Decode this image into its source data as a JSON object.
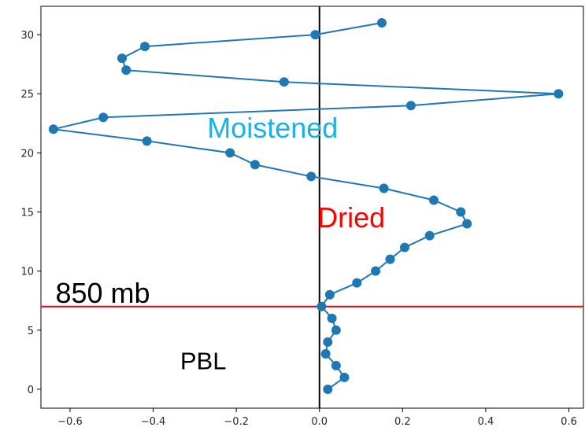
{
  "chart_data": {
    "type": "line",
    "title": "",
    "xlabel": "",
    "ylabel": "",
    "xlim": [
      -0.67,
      0.635
    ],
    "ylim": [
      -1.6,
      32.4
    ],
    "x_ticks": [
      -0.6,
      -0.4,
      -0.2,
      0.0,
      0.2,
      0.4,
      0.6
    ],
    "x_tick_labels": [
      "−0.6",
      "−0.4",
      "−0.2",
      "0.0",
      "0.2",
      "0.4",
      "0.6"
    ],
    "y_ticks": [
      0,
      5,
      10,
      15,
      20,
      25,
      30
    ],
    "y_tick_labels": [
      "0",
      "5",
      "10",
      "15",
      "20",
      "25",
      "30"
    ],
    "grid": false,
    "series": [
      {
        "color": "#1f77b4",
        "marker": "circle",
        "points": [
          {
            "x": 0.02,
            "y": 0
          },
          {
            "x": 0.06,
            "y": 1
          },
          {
            "x": 0.04,
            "y": 2
          },
          {
            "x": 0.015,
            "y": 3
          },
          {
            "x": 0.02,
            "y": 4
          },
          {
            "x": 0.04,
            "y": 5
          },
          {
            "x": 0.03,
            "y": 6
          },
          {
            "x": 0.005,
            "y": 7
          },
          {
            "x": 0.025,
            "y": 8
          },
          {
            "x": 0.09,
            "y": 9
          },
          {
            "x": 0.135,
            "y": 10
          },
          {
            "x": 0.17,
            "y": 11
          },
          {
            "x": 0.205,
            "y": 12
          },
          {
            "x": 0.265,
            "y": 13
          },
          {
            "x": 0.355,
            "y": 14
          },
          {
            "x": 0.34,
            "y": 15
          },
          {
            "x": 0.275,
            "y": 16
          },
          {
            "x": 0.155,
            "y": 17
          },
          {
            "x": -0.02,
            "y": 18
          },
          {
            "x": -0.155,
            "y": 19
          },
          {
            "x": -0.215,
            "y": 20
          },
          {
            "x": -0.415,
            "y": 21
          },
          {
            "x": -0.64,
            "y": 22
          },
          {
            "x": -0.52,
            "y": 23
          },
          {
            "x": 0.22,
            "y": 24
          },
          {
            "x": 0.575,
            "y": 25
          },
          {
            "x": -0.085,
            "y": 26
          },
          {
            "x": -0.465,
            "y": 27
          },
          {
            "x": -0.475,
            "y": 28
          },
          {
            "x": -0.42,
            "y": 29
          },
          {
            "x": -0.01,
            "y": 30
          },
          {
            "x": 0.15,
            "y": 31
          }
        ]
      }
    ],
    "reference_lines": [
      {
        "orientation": "vertical",
        "x": 0.0,
        "color": "#000000"
      },
      {
        "orientation": "horizontal",
        "y": 7,
        "color": "#e8000b"
      }
    ],
    "annotations": [
      {
        "text": "Moistened",
        "x": -0.27,
        "y": 21.3,
        "color": "#1ab0e8",
        "size": "large"
      },
      {
        "text": "Dried",
        "x": -0.005,
        "y": 13.7,
        "color": "#ff0000",
        "size": "large"
      },
      {
        "text": "850 mb",
        "x": -0.635,
        "y": 7.3,
        "color": "#000000",
        "size": "large"
      },
      {
        "text": "PBL",
        "x": -0.335,
        "y": 1.7,
        "color": "#000000",
        "size": "medium"
      }
    ]
  }
}
